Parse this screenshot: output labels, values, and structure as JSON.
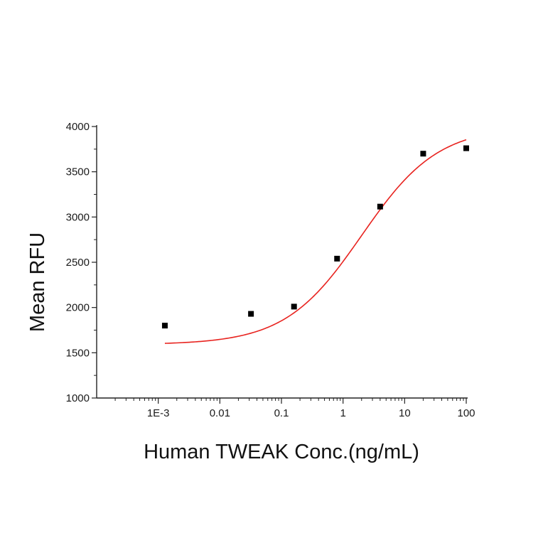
{
  "chart_data": {
    "type": "scatter",
    "xlabel": "Human TWEAK Conc.(ng/mL)",
    "ylabel": "Mean RFU",
    "x_scale": "log",
    "xlim": [
      0.0001,
      100
    ],
    "ylim": [
      1000,
      4000
    ],
    "x_ticks": [
      {
        "value": 0.001,
        "label": "1E-3"
      },
      {
        "value": 0.01,
        "label": "0.01"
      },
      {
        "value": 0.1,
        "label": "0.1"
      },
      {
        "value": 1,
        "label": "1"
      },
      {
        "value": 10,
        "label": "10"
      },
      {
        "value": 100,
        "label": "100"
      }
    ],
    "y_ticks": [
      {
        "value": 1000,
        "label": "1000"
      },
      {
        "value": 1500,
        "label": "1500"
      },
      {
        "value": 2000,
        "label": "2000"
      },
      {
        "value": 2500,
        "label": "2500"
      },
      {
        "value": 3000,
        "label": "3000"
      },
      {
        "value": 3500,
        "label": "3500"
      },
      {
        "value": 4000,
        "label": "4000"
      }
    ],
    "grid": false,
    "series": [
      {
        "kind": "points",
        "marker": "square",
        "color": "#000000",
        "x": [
          0.00128,
          0.032,
          0.16,
          0.8,
          4,
          20,
          100
        ],
        "y": [
          1800,
          1930,
          2010,
          2540,
          3115,
          3700,
          3760
        ]
      },
      {
        "kind": "fit-line",
        "color": "#e8231f",
        "model": "4PL",
        "params": {
          "bottom": 1590,
          "top": 4000,
          "ec50": 2.0,
          "hill": 0.7
        },
        "x_range": [
          0.00128,
          100
        ]
      }
    ]
  }
}
